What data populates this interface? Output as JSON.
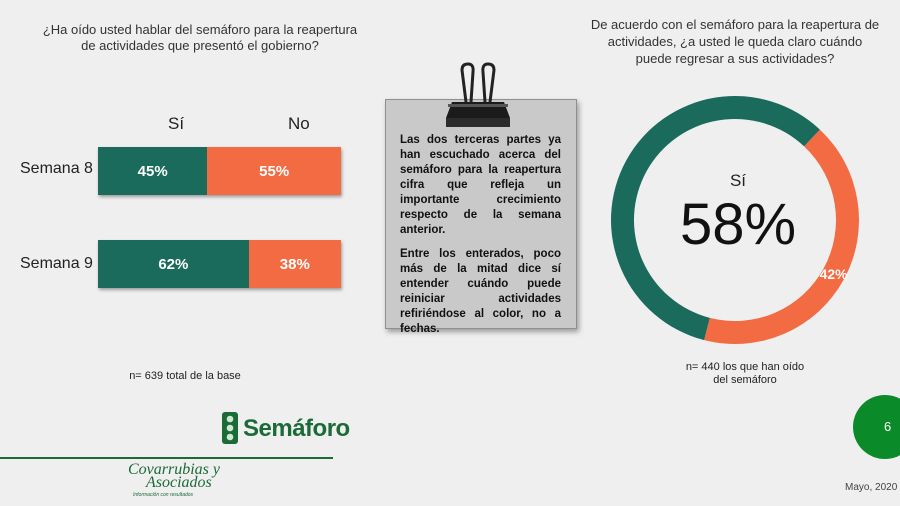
{
  "left_question": "¿Ha oído usted hablar del semáforo para la reapertura de actividades que presentó el gobierno?",
  "right_question": "De acuerdo con el semáforo para la reapertura de actividades, ¿a usted le queda claro cuándo puede regresar a sus actividades?",
  "callout": {
    "p1": "Las dos terceras partes ya han escuchado acerca del semáforo para la reapertura cifra que refleja un importante crecimiento respecto de la semana anterior.",
    "p2": "Entre los enterados, poco más de la mitad dice sí entender cuándo puede reiniciar actividades refiriéndose al color, no a fechas."
  },
  "left_note": "n= 639 total de la base",
  "right_note_line1": "n= 440 los que han oído",
  "right_note_line2": "del semáforo",
  "semaforo_label": "Semáforo",
  "logo": {
    "line1": "Covarrubias y",
    "line2": "Asociados",
    "tagline": "Información con resultados"
  },
  "page_number": "6",
  "date": "Mayo, 2020",
  "colors": {
    "si": "#1a6b5c",
    "no": "#f26b43",
    "brand": "#1a6b38"
  },
  "chart_data": [
    {
      "type": "bar",
      "orientation": "horizontal-stacked",
      "categories": [
        "Semana 8",
        "Semana 9"
      ],
      "series": [
        {
          "name": "Sí",
          "values": [
            45,
            62
          ],
          "labels": [
            "45%",
            "62%"
          ]
        },
        {
          "name": "No",
          "values": [
            55,
            38
          ],
          "labels": [
            "55%",
            "38%"
          ]
        }
      ]
    },
    {
      "type": "pie",
      "variant": "donut",
      "categories": [
        "Sí",
        "No"
      ],
      "values": [
        58,
        42
      ],
      "center_label": "Sí",
      "center_value": "58%",
      "slice_label": "42%"
    }
  ]
}
